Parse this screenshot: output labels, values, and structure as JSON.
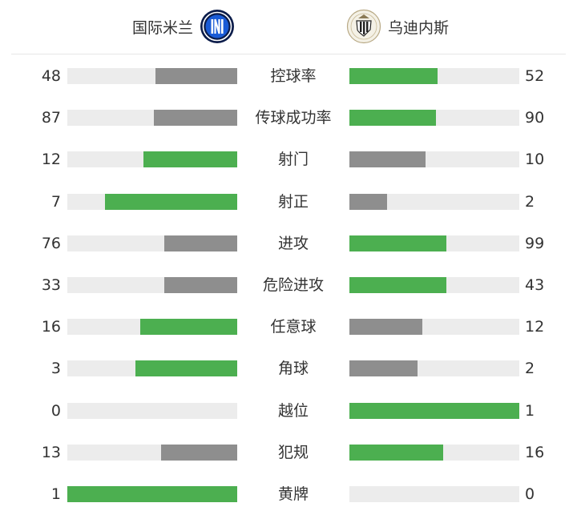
{
  "colors": {
    "higher": "#4caf50",
    "lower": "#8e8e8e",
    "track": "#ececec"
  },
  "home": {
    "name": "国际米兰",
    "logo": "inter-crest"
  },
  "away": {
    "name": "乌迪内斯",
    "logo": "udinese-crest"
  },
  "stats": [
    {
      "label": "控球率",
      "home": "48",
      "away": "52",
      "home_fill": 0.48,
      "away_fill": 0.52,
      "home_color": "lower",
      "away_color": "higher"
    },
    {
      "label": "传球成功率",
      "home": "87",
      "away": "90",
      "home_fill": 0.49,
      "away_fill": 0.51,
      "home_color": "lower",
      "away_color": "higher"
    },
    {
      "label": "射门",
      "home": "12",
      "away": "10",
      "home_fill": 0.55,
      "away_fill": 0.45,
      "home_color": "higher",
      "away_color": "lower"
    },
    {
      "label": "射正",
      "home": "7",
      "away": "2",
      "home_fill": 0.78,
      "away_fill": 0.22,
      "home_color": "higher",
      "away_color": "lower"
    },
    {
      "label": "进攻",
      "home": "76",
      "away": "99",
      "home_fill": 0.43,
      "away_fill": 0.57,
      "home_color": "lower",
      "away_color": "higher"
    },
    {
      "label": "危险进攻",
      "home": "33",
      "away": "43",
      "home_fill": 0.43,
      "away_fill": 0.57,
      "home_color": "lower",
      "away_color": "higher"
    },
    {
      "label": "任意球",
      "home": "16",
      "away": "12",
      "home_fill": 0.57,
      "away_fill": 0.43,
      "home_color": "higher",
      "away_color": "lower"
    },
    {
      "label": "角球",
      "home": "3",
      "away": "2",
      "home_fill": 0.6,
      "away_fill": 0.4,
      "home_color": "higher",
      "away_color": "lower"
    },
    {
      "label": "越位",
      "home": "0",
      "away": "1",
      "home_fill": 0,
      "away_fill": 1,
      "home_color": "lower",
      "away_color": "higher"
    },
    {
      "label": "犯规",
      "home": "13",
      "away": "16",
      "home_fill": 0.45,
      "away_fill": 0.55,
      "home_color": "lower",
      "away_color": "higher"
    },
    {
      "label": "黄牌",
      "home": "1",
      "away": "0",
      "home_fill": 1,
      "away_fill": 0,
      "home_color": "higher",
      "away_color": "lower"
    }
  ]
}
